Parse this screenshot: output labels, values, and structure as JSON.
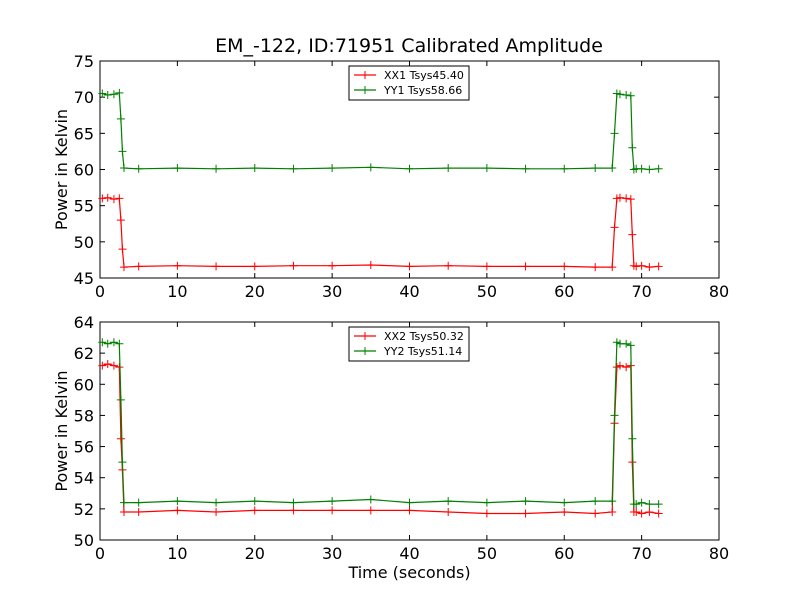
{
  "title": "EM_-122, ID:71951 Calibrated Amplitude",
  "colors": {
    "xx": "#ff0000",
    "yy": "#008000"
  },
  "chart_data": [
    {
      "type": "line",
      "title": "EM_-122, ID:71951 Calibrated Amplitude",
      "xlabel": "",
      "ylabel": "Power in Kelvin",
      "xlim": [
        0,
        80
      ],
      "ylim": [
        45,
        75
      ],
      "xticks": [
        0,
        10,
        20,
        30,
        40,
        50,
        60,
        70,
        80
      ],
      "yticks": [
        45,
        50,
        55,
        60,
        65,
        70,
        75
      ],
      "grid": false,
      "legend_position": "top-center",
      "series": [
        {
          "name": "XX1 Tsys45.40",
          "color": "#ff0000",
          "x": [
            0.3,
            1.0,
            1.8,
            2.5,
            2.7,
            2.9,
            3.1,
            5,
            10,
            15,
            20,
            25,
            30,
            35,
            40,
            45,
            50,
            55,
            60,
            64,
            66.2,
            66.5,
            66.8,
            67.2,
            68,
            68.6,
            68.8,
            69,
            69.3,
            70,
            71,
            72.2
          ],
          "y": [
            56.0,
            56.1,
            55.9,
            56.0,
            53.0,
            49.0,
            46.5,
            46.6,
            46.7,
            46.6,
            46.6,
            46.7,
            46.7,
            46.8,
            46.6,
            46.7,
            46.6,
            46.6,
            46.6,
            46.5,
            46.5,
            52.0,
            56.0,
            56.1,
            56.0,
            55.9,
            51.0,
            46.7,
            46.6,
            46.7,
            46.5,
            46.6
          ]
        },
        {
          "name": "YY1 Tsys58.66",
          "color": "#008000",
          "x": [
            0.3,
            1.0,
            1.8,
            2.5,
            2.7,
            2.9,
            3.1,
            5,
            10,
            15,
            20,
            25,
            30,
            35,
            40,
            45,
            50,
            55,
            60,
            64,
            66.2,
            66.5,
            66.8,
            67.2,
            68,
            68.6,
            68.8,
            69,
            69.3,
            70,
            71,
            72.2
          ],
          "y": [
            70.5,
            70.3,
            70.4,
            70.6,
            67.0,
            62.5,
            60.2,
            60.1,
            60.2,
            60.1,
            60.2,
            60.1,
            60.2,
            60.3,
            60.1,
            60.2,
            60.2,
            60.1,
            60.1,
            60.2,
            60.2,
            65.0,
            70.5,
            70.4,
            70.3,
            70.2,
            63.0,
            60.0,
            60.1,
            60.1,
            60.0,
            60.1
          ]
        }
      ]
    },
    {
      "type": "line",
      "title": "",
      "xlabel": "Time (seconds)",
      "ylabel": "Power in Kelvin",
      "xlim": [
        0,
        80
      ],
      "ylim": [
        50,
        64
      ],
      "xticks": [
        0,
        10,
        20,
        30,
        40,
        50,
        60,
        70,
        80
      ],
      "yticks": [
        50,
        52,
        54,
        56,
        58,
        60,
        62,
        64
      ],
      "grid": false,
      "legend_position": "top-center",
      "series": [
        {
          "name": "XX2 Tsys50.32",
          "color": "#ff0000",
          "x": [
            0.3,
            1.0,
            1.8,
            2.5,
            2.7,
            2.9,
            3.1,
            5,
            10,
            15,
            20,
            25,
            30,
            35,
            40,
            45,
            50,
            55,
            60,
            64,
            66.2,
            66.5,
            66.8,
            67.2,
            68,
            68.6,
            68.8,
            69,
            69.3,
            70,
            71,
            72.2
          ],
          "y": [
            61.2,
            61.3,
            61.2,
            61.1,
            56.5,
            54.5,
            51.8,
            51.8,
            51.9,
            51.8,
            51.9,
            51.9,
            51.9,
            51.9,
            51.9,
            51.8,
            51.7,
            51.7,
            51.8,
            51.7,
            51.8,
            57.5,
            61.1,
            61.2,
            61.1,
            61.2,
            55.0,
            51.8,
            51.8,
            51.7,
            51.8,
            51.7
          ]
        },
        {
          "name": "YY2 Tsys51.14",
          "color": "#008000",
          "x": [
            0.3,
            1.0,
            1.8,
            2.5,
            2.7,
            2.9,
            3.1,
            5,
            10,
            15,
            20,
            25,
            30,
            35,
            40,
            45,
            50,
            55,
            60,
            64,
            66.2,
            66.5,
            66.8,
            67.2,
            68,
            68.6,
            68.8,
            69,
            69.3,
            70,
            71,
            72.2
          ],
          "y": [
            62.7,
            62.6,
            62.7,
            62.6,
            59.0,
            55.0,
            52.4,
            52.4,
            52.5,
            52.4,
            52.5,
            52.4,
            52.5,
            52.6,
            52.4,
            52.5,
            52.4,
            52.5,
            52.4,
            52.5,
            52.5,
            58.0,
            62.7,
            62.6,
            62.6,
            62.5,
            56.5,
            52.3,
            52.3,
            52.4,
            52.3,
            52.3
          ]
        }
      ]
    }
  ]
}
